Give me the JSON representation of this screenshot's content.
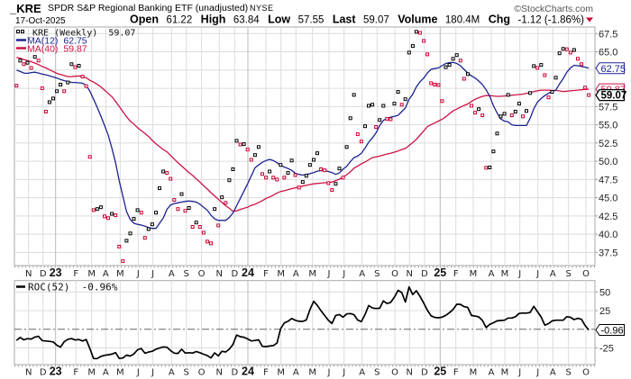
{
  "header": {
    "symbol": "_KRE",
    "name": "SPDR S&P Regional Banking ETF (unadjusted)",
    "exchange": "NYSE",
    "date": "17-Oct-2025",
    "watermark": "©StockCharts.com",
    "quote": {
      "open_label": "Open",
      "open": "61.22",
      "high_label": "High",
      "high": "63.84",
      "low_label": "Low",
      "low": "57.55",
      "last_label": "Last",
      "last": "59.07",
      "volume_label": "Volume",
      "volume": "180.4M",
      "chg_label": "Chg",
      "chg": "-1.12 (-1.86%)",
      "chg_direction_icon": "down-triangle-icon",
      "chg_color": "#cc0033"
    }
  },
  "chart_data": [
    {
      "type": "scatter",
      "legend_position": "top-left",
      "grid": true,
      "ylim": [
        35.7,
        68.4
      ],
      "x_ticks": [
        "N",
        "D",
        "23",
        "F",
        "M",
        "A",
        "M",
        "J",
        "J",
        "A",
        "S",
        "O",
        "N",
        "D",
        "24",
        "F",
        "M",
        "A",
        "M",
        "J",
        "J",
        "A",
        "S",
        "O",
        "N",
        "D",
        "25",
        "F",
        "M",
        "A",
        "M",
        "J",
        "J",
        "A",
        "S",
        "O"
      ],
      "y_ticks": [
        "67.5",
        "65.0",
        "57.5",
        "55.0",
        "52.5",
        "50.0",
        "47.5",
        "45.0",
        "42.5",
        "40.0",
        "37.5"
      ],
      "series": [
        {
          "name": "_KRE (Weekly)",
          "last": "59.07",
          "color_up": "#000000",
          "color_down": "#cc0033",
          "values": [
            60.35,
            63.8,
            63.3,
            63.5,
            62.8,
            64.3,
            63.8,
            60.0,
            56.8,
            58.1,
            58.6,
            59.6,
            60.5,
            59.6,
            60.8,
            63.3,
            62.9,
            63.1,
            61.6,
            60.3,
            50.6,
            43.3,
            43.45,
            43.7,
            42.45,
            42.2,
            42.8,
            42.6,
            38.3,
            36.3,
            39.1,
            40.1,
            42.1,
            43.3,
            42.95,
            39.5,
            40.7,
            41.35,
            42.95,
            46.3,
            48.6,
            48.4,
            47.6,
            44.7,
            43.45,
            45.5,
            43.2,
            43.6,
            41.0,
            41.6,
            41.0,
            40.2,
            39.0,
            38.75,
            43.45,
            41.2,
            45.05,
            44.3,
            47.4,
            48.9,
            52.8,
            52.3,
            52.35,
            51.6,
            50.2,
            50.85,
            51.95,
            48.25,
            47.75,
            48.6,
            47.75,
            47.5,
            49.5,
            47.75,
            48.4,
            50.1,
            48.1,
            46.4,
            47.15,
            48.0,
            49.5,
            50.2,
            51.1,
            48.9,
            48.75,
            47.0,
            46.05,
            46.9,
            49.0,
            47.75,
            51.95,
            55.9,
            59.1,
            53.7,
            52.7,
            54.8,
            57.6,
            57.75,
            54.7,
            55.65,
            57.6,
            55.8,
            55.75,
            57.9,
            59.5,
            57.75,
            58.5,
            64.9,
            65.8,
            67.75,
            67.6,
            66.5,
            64.65,
            60.7,
            60.5,
            60.45,
            58.25,
            62.9,
            63.2,
            64.05,
            64.55,
            63.8,
            61.3,
            61.95,
            57.6,
            56.65,
            57.15,
            56.3,
            49.1,
            49.15,
            51.35,
            53.8,
            56.15,
            56.5,
            59.1,
            56.3,
            56.8,
            57.9,
            56.15,
            56.9,
            59.35,
            63.05,
            62.8,
            63.2,
            61.8,
            58.75,
            59.5,
            61.45,
            64.8,
            65.4,
            65.35,
            64.9,
            65.25,
            64.05,
            63.3,
            60.1,
            59.07
          ]
        },
        {
          "name": "MA(12)",
          "last": "62.75",
          "color": "#1c2390",
          "values": [
            62.5,
            62.3,
            62.1,
            62.05,
            62.15,
            62.2,
            62.1,
            61.95,
            61.85,
            61.7,
            61.55,
            61.4,
            61.2,
            61.05,
            60.95,
            60.8,
            60.8,
            60.75,
            60.7,
            60.4,
            59.6,
            58.5,
            57.4,
            56.2,
            54.9,
            53.6,
            51.8,
            49.8,
            47.3,
            45.2,
            43.1,
            42.0,
            41.5,
            41.35,
            41.25,
            41.1,
            40.9,
            40.8,
            40.8,
            41.5,
            42.2,
            43.4,
            44.0,
            44.2,
            44.3,
            44.4,
            44.5,
            44.55,
            44.5,
            44.4,
            44.1,
            43.7,
            43.3,
            42.6,
            42.1,
            41.9,
            41.9,
            41.9,
            42.3,
            42.9,
            43.9,
            44.9,
            45.9,
            46.9,
            48.0,
            49.1,
            49.5,
            49.85,
            50.1,
            50.25,
            50.1,
            49.8,
            49.45,
            49.2,
            49.0,
            48.75,
            48.35,
            48.2,
            48.1,
            48.2,
            48.3,
            48.45,
            48.65,
            48.7,
            48.7,
            48.6,
            48.45,
            48.2,
            48.4,
            48.9,
            49.3,
            49.95,
            50.5,
            50.7,
            51.1,
            51.8,
            52.6,
            53.2,
            53.9,
            54.9,
            55.6,
            55.9,
            56.05,
            56.15,
            56.3,
            56.8,
            57.3,
            58.5,
            59.2,
            60.2,
            60.9,
            61.4,
            62.1,
            62.6,
            62.7,
            62.8,
            63.1,
            63.4,
            63.5,
            63.55,
            63.4,
            63.1,
            62.6,
            62.1,
            61.7,
            61.4,
            61.0,
            60.5,
            59.8,
            58.9,
            57.6,
            56.6,
            55.8,
            55.5,
            55.4,
            55.0,
            54.9,
            54.9,
            54.9,
            54.9,
            55.9,
            57.2,
            58.1,
            58.6,
            59.0,
            59.3,
            59.6,
            59.75,
            60.6,
            61.3,
            62.2,
            62.8,
            63.15,
            63.1,
            63.0,
            62.9,
            62.75
          ]
        },
        {
          "name": "MA(40)",
          "last": "59.87",
          "color": "#cc1144",
          "values": [
            64.25,
            64.1,
            63.95,
            63.8,
            63.65,
            63.45,
            63.25,
            63.0,
            62.8,
            62.55,
            62.3,
            62.05,
            61.9,
            61.75,
            61.6,
            61.6,
            61.65,
            61.7,
            61.6,
            61.45,
            61.1,
            60.85,
            60.55,
            60.2,
            59.75,
            59.3,
            58.85,
            58.2,
            57.5,
            56.8,
            56.1,
            55.5,
            55.1,
            54.6,
            54.2,
            53.8,
            53.4,
            52.85,
            52.4,
            52.0,
            51.6,
            51.3,
            50.8,
            50.3,
            49.8,
            49.35,
            48.9,
            48.45,
            48.05,
            47.6,
            47.15,
            46.65,
            46.2,
            45.7,
            45.25,
            44.8,
            44.35,
            43.9,
            43.55,
            43.15,
            43.2,
            43.4,
            43.55,
            43.7,
            43.95,
            44.1,
            44.35,
            44.6,
            44.9,
            45.1,
            45.35,
            45.65,
            45.85,
            45.95,
            46.1,
            46.25,
            46.35,
            46.5,
            46.6,
            46.7,
            46.8,
            46.9,
            46.95,
            47.0,
            47.05,
            47.1,
            47.15,
            47.35,
            47.55,
            47.8,
            48.15,
            48.55,
            49.05,
            49.35,
            49.65,
            49.9,
            50.2,
            50.5,
            50.6,
            50.7,
            50.85,
            51.0,
            51.1,
            51.25,
            51.4,
            51.6,
            51.75,
            52.15,
            52.55,
            53.0,
            53.6,
            54.15,
            54.75,
            55.0,
            55.25,
            55.5,
            55.75,
            56.1,
            56.5,
            56.9,
            57.15,
            57.4,
            57.65,
            57.85,
            58.2,
            58.5,
            58.7,
            58.9,
            59.0,
            59.0,
            58.95,
            58.9,
            58.9,
            58.95,
            59.0,
            59.05,
            59.1,
            59.15,
            59.2,
            59.3,
            59.4,
            59.55,
            59.65,
            59.75,
            59.75,
            59.75,
            59.7,
            59.7,
            59.65,
            59.55,
            59.6,
            59.65,
            59.7,
            59.75,
            59.8,
            59.85,
            59.87
          ]
        }
      ]
    },
    {
      "type": "line",
      "legend_position": "top-left",
      "grid": true,
      "ylim": [
        -47.5,
        65.3
      ],
      "x_ticks": [
        "N",
        "D",
        "23",
        "F",
        "M",
        "A",
        "M",
        "J",
        "J",
        "A",
        "S",
        "O",
        "N",
        "D",
        "24",
        "F",
        "M",
        "A",
        "M",
        "J",
        "J",
        "A",
        "S",
        "O",
        "N",
        "D",
        "25",
        "F",
        "M",
        "A",
        "M",
        "J",
        "J",
        "A",
        "S",
        "O"
      ],
      "y_ticks": [
        "50",
        "25",
        "-25"
      ],
      "series": [
        {
          "name": "ROC(52)",
          "legend_value": "-0.96%",
          "last": "-0.96",
          "color": "#000000",
          "values": [
            -15,
            -11,
            -14.3,
            -12.7,
            -13.2,
            -10.5,
            -9.5,
            -15.2,
            -15.8,
            -16.3,
            -17,
            -21.5,
            -24,
            -16.8,
            -13.5,
            -12.5,
            -14.5,
            -13.8,
            -15.8,
            -13.8,
            -26,
            -39.4,
            -39.4,
            -36.5,
            -35,
            -34.3,
            -33.5,
            -31.4,
            -39.3,
            -38.7,
            -34.8,
            -36,
            -33.2,
            -27.5,
            -25.8,
            -32.3,
            -30.7,
            -29.6,
            -26.8,
            -25.2,
            -23.8,
            -24.2,
            -28.6,
            -32.2,
            -32.5,
            -26.8,
            -32,
            -31.5,
            -32,
            -30,
            -31.5,
            -33.6,
            -35.3,
            -38.6,
            -31.8,
            -35.8,
            -29.6,
            -30.6,
            -26.7,
            -20.5,
            -7.8,
            -10,
            -10.8,
            -13,
            -15.7,
            -15.1,
            -14.2,
            -23,
            -23.3,
            -22.6,
            -22,
            -18.6,
            0.6,
            8.5,
            10.7,
            14.4,
            12,
            10.7,
            10.5,
            12.5,
            26.5,
            37.5,
            32,
            24.8,
            18.4,
            12,
            7.7,
            18.5,
            19.7,
            16.2,
            20.6,
            21,
            19.5,
            12.4,
            10.2,
            20,
            31.8,
            28.5,
            27.8,
            28.2,
            38,
            34.5,
            36.1,
            43,
            52.2,
            49.2,
            36.5,
            56.8,
            46.6,
            51.8,
            44,
            35.1,
            25.5,
            18,
            15.8,
            15.4,
            16.2,
            18.6,
            22.2,
            26.5,
            33.5,
            33.4,
            30.3,
            29.3,
            18.5,
            17.7,
            16.6,
            11.8,
            2.3,
            6.5,
            8.7,
            11.2,
            11.8,
            12.1,
            15,
            15,
            16.8,
            21.2,
            21.8,
            21.7,
            22.5,
            30.7,
            23.7,
            16.5,
            5.5,
            7.5,
            11.2,
            12.1,
            12.1,
            12.1,
            16.8,
            16,
            12.9,
            14.6,
            13.3,
            5,
            -0.96
          ]
        }
      ]
    }
  ]
}
